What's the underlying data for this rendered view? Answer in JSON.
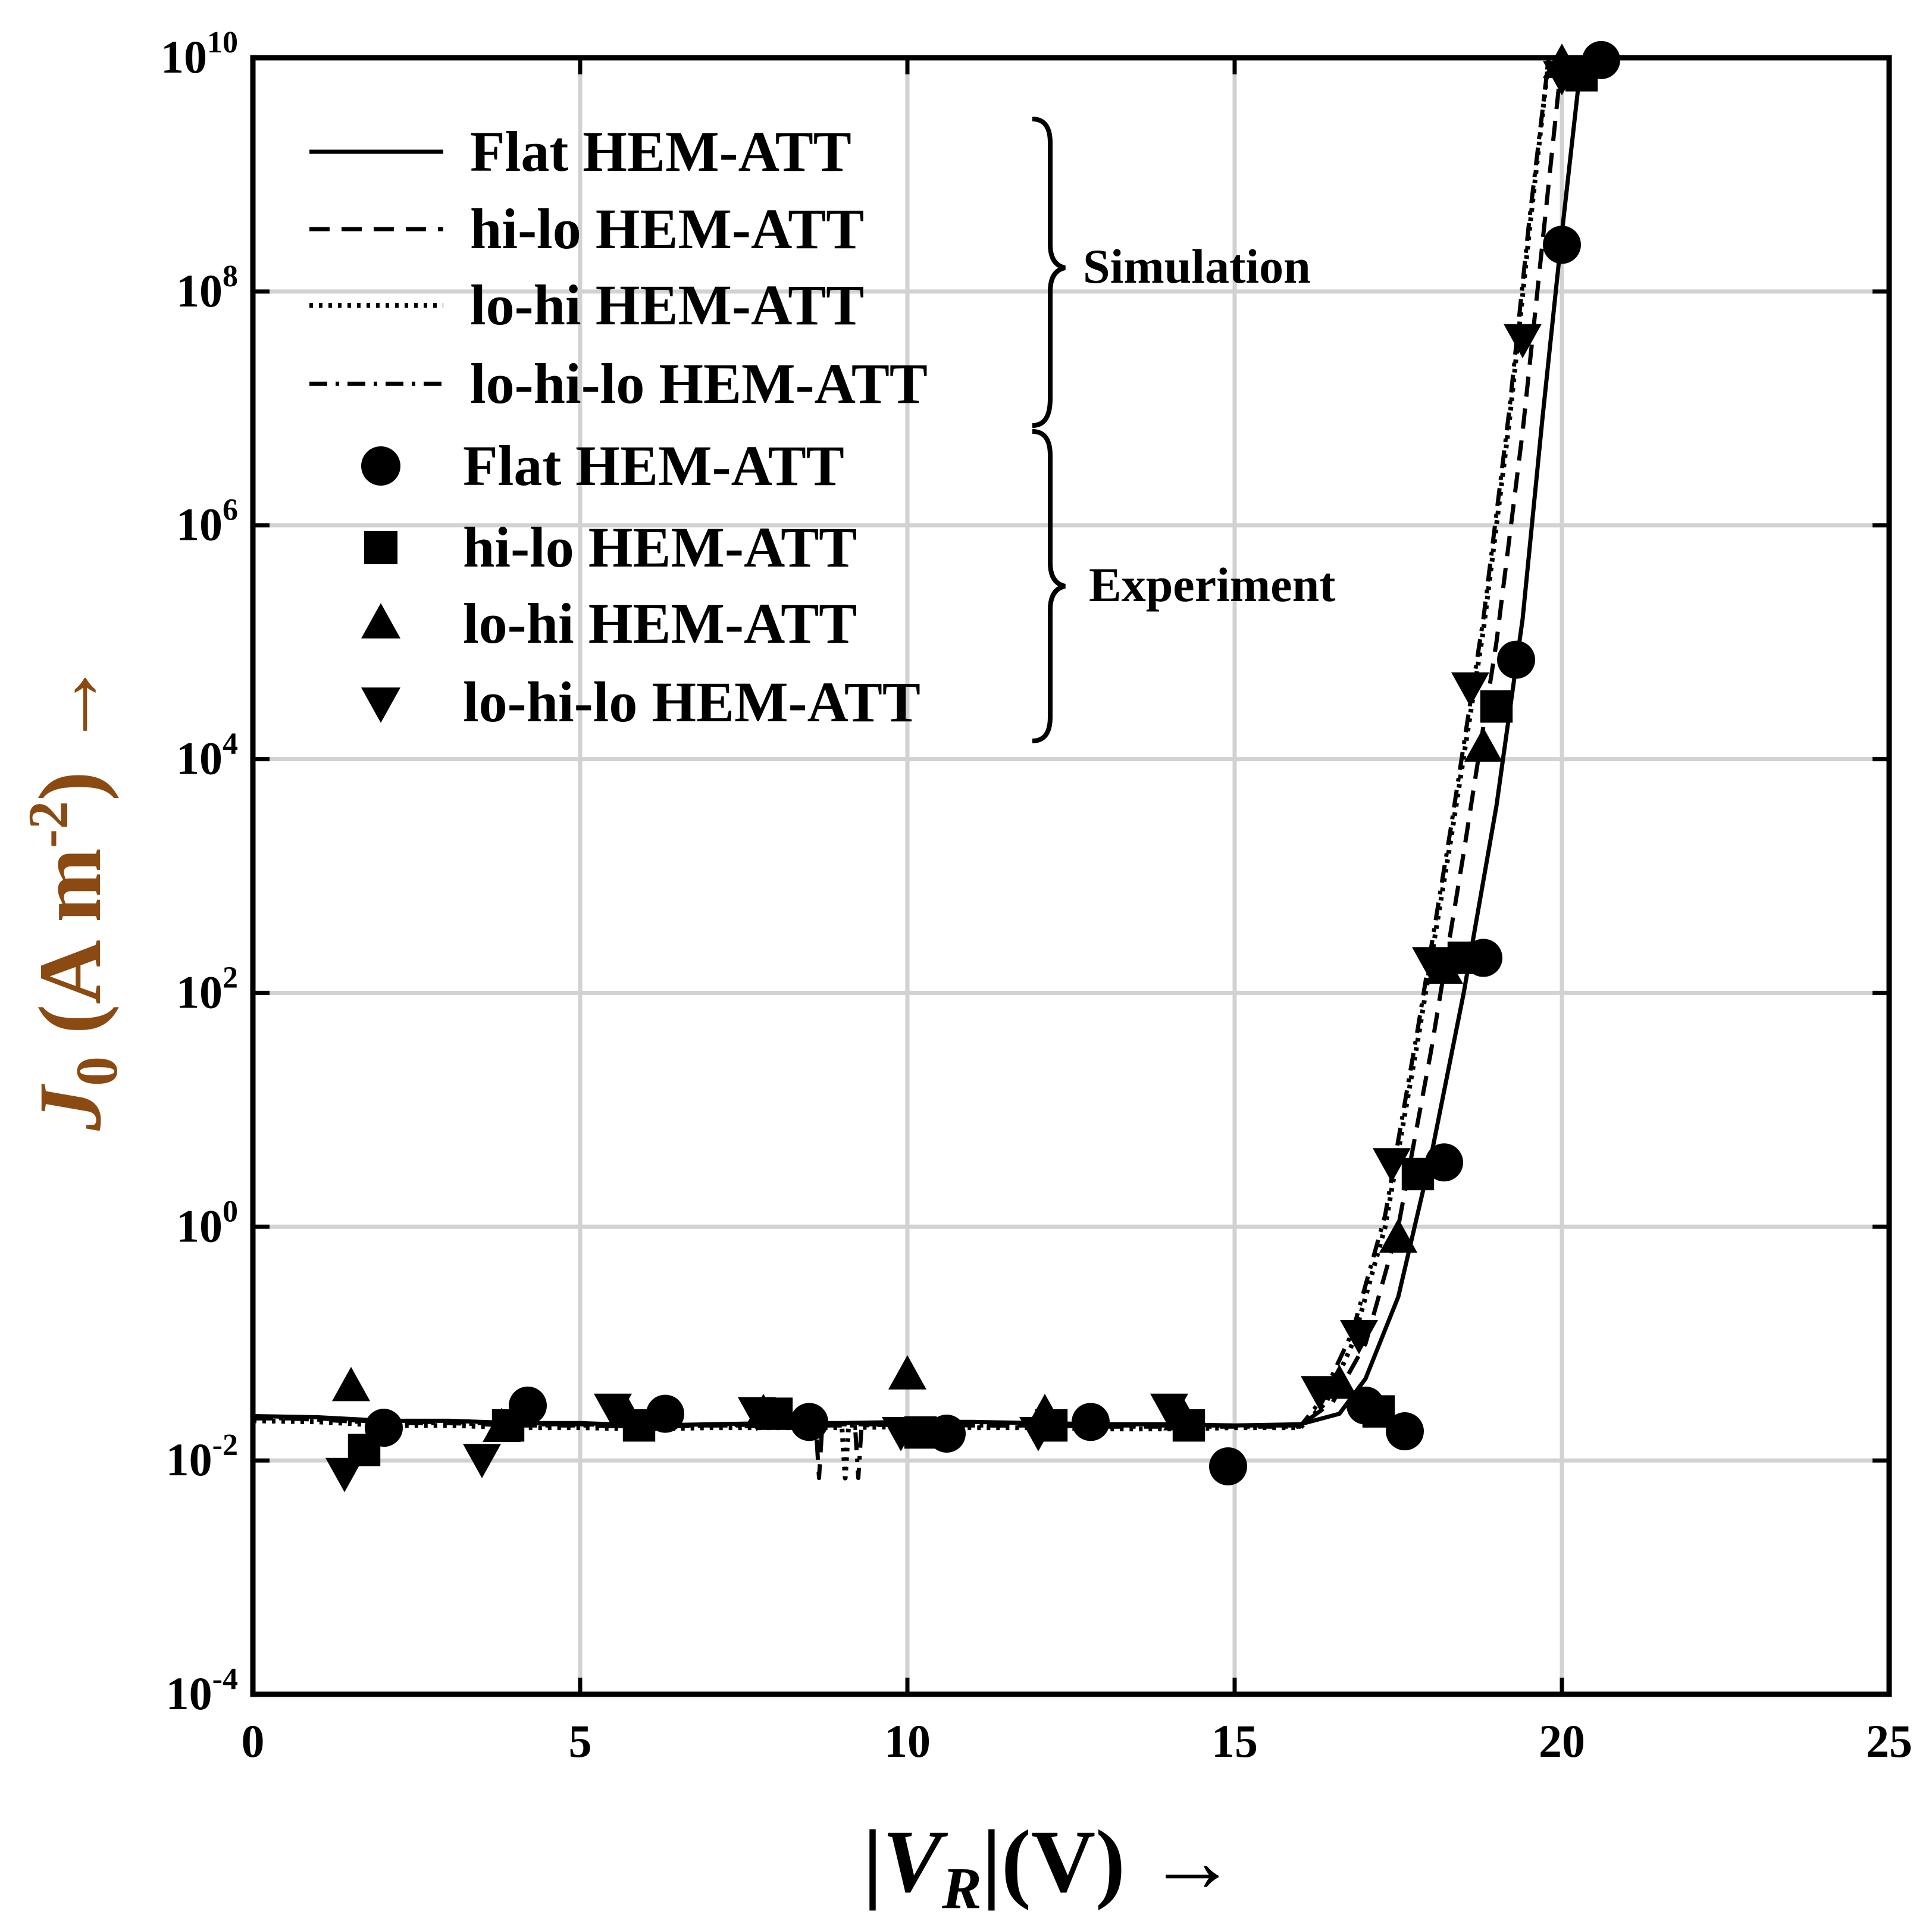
{
  "chart_data": {
    "type": "line",
    "title": "",
    "xlabel": {
      "prefix": "|",
      "var": "V",
      "sub": "R",
      "suffix": "|(V) →"
    },
    "ylabel": {
      "var": "J",
      "sub": "0",
      "mid": " (A m",
      "sup": "-2",
      "suffix": ") →"
    },
    "x_range": [
      0,
      25
    ],
    "y_range_log10": [
      -4,
      10
    ],
    "y_scale": "log",
    "grid": true,
    "x_ticks": [
      {
        "value": 0,
        "label": "0"
      },
      {
        "value": 5,
        "label": "5"
      },
      {
        "value": 10,
        "label": "10"
      },
      {
        "value": 15,
        "label": "15"
      },
      {
        "value": 20,
        "label": "20"
      },
      {
        "value": 25,
        "label": "25"
      }
    ],
    "y_ticks": [
      {
        "exp": 10,
        "base": "10",
        "sup": "10"
      },
      {
        "exp": 8,
        "base": "10",
        "sup": "8"
      },
      {
        "exp": 6,
        "base": "10",
        "sup": "6"
      },
      {
        "exp": 4,
        "base": "10",
        "sup": "4"
      },
      {
        "exp": 2,
        "base": "10",
        "sup": "2"
      },
      {
        "exp": 0,
        "base": "10",
        "sup": "0"
      },
      {
        "exp": -2,
        "base": "10",
        "sup": "-2"
      },
      {
        "exp": -4,
        "base": "10",
        "sup": "-4"
      }
    ],
    "legend_position": "top-left",
    "legend_groups": [
      {
        "label": "Simulation",
        "entries": [
          "Flat HEM-ATT",
          "hi-lo HEM-ATT",
          "lo-hi HEM-ATT",
          "lo-hi-lo HEM-ATT"
        ]
      },
      {
        "label": "Experiment",
        "entries": [
          "Flat HEM-ATT",
          "hi-lo HEM-ATT",
          "lo-hi HEM-ATT",
          "lo-hi-lo HEM-ATT"
        ]
      }
    ],
    "series": [
      {
        "name": "Flat HEM-ATT",
        "group": "Simulation",
        "style": "solid",
        "points": [
          [
            0,
            -1.62
          ],
          [
            1,
            -1.63
          ],
          [
            2,
            -1.66
          ],
          [
            3,
            -1.66
          ],
          [
            4,
            -1.68
          ],
          [
            5,
            -1.68
          ],
          [
            6,
            -1.7
          ],
          [
            7,
            -1.69
          ],
          [
            8,
            -1.68
          ],
          [
            9,
            -1.68
          ],
          [
            10,
            -1.67
          ],
          [
            11,
            -1.67
          ],
          [
            12,
            -1.68
          ],
          [
            13,
            -1.69
          ],
          [
            14,
            -1.69
          ],
          [
            15,
            -1.7
          ],
          [
            16,
            -1.69
          ],
          [
            16.6,
            -1.6
          ],
          [
            17,
            -1.3
          ],
          [
            17.5,
            -0.6
          ],
          [
            18,
            0.6
          ],
          [
            18.5,
            2
          ],
          [
            19,
            3.6
          ],
          [
            19.4,
            5.2
          ],
          [
            19.7,
            6.9
          ],
          [
            20,
            8.5
          ],
          [
            20.3,
            10
          ]
        ]
      },
      {
        "name": "hi-lo HEM-ATT",
        "group": "Simulation",
        "style": "dashed",
        "points": [
          [
            0,
            -1.64
          ],
          [
            1,
            -1.64
          ],
          [
            2,
            -1.67
          ],
          [
            3,
            -1.67
          ],
          [
            4,
            -1.69
          ],
          [
            5,
            -1.69
          ],
          [
            6,
            -1.7
          ],
          [
            7,
            -1.7
          ],
          [
            8,
            -1.69
          ],
          [
            8.6,
            -1.69
          ],
          [
            8.65,
            -2.15
          ],
          [
            8.7,
            -1.69
          ],
          [
            10,
            -1.69
          ],
          [
            11,
            -1.7
          ],
          [
            12,
            -1.7
          ],
          [
            13,
            -1.7
          ],
          [
            14,
            -1.7
          ],
          [
            15,
            -1.7
          ],
          [
            16,
            -1.7
          ],
          [
            16.5,
            -1.5
          ],
          [
            17,
            -1
          ],
          [
            17.5,
            0
          ],
          [
            18,
            1.5
          ],
          [
            18.5,
            3.2
          ],
          [
            19,
            5
          ],
          [
            19.4,
            6.8
          ],
          [
            19.7,
            8.4
          ],
          [
            20,
            10
          ]
        ]
      },
      {
        "name": "lo-hi HEM-ATT",
        "group": "Simulation",
        "style": "dotted",
        "points": [
          [
            0,
            -1.66
          ],
          [
            1,
            -1.67
          ],
          [
            2,
            -1.7
          ],
          [
            3,
            -1.7
          ],
          [
            4,
            -1.72
          ],
          [
            5,
            -1.72
          ],
          [
            6,
            -1.73
          ],
          [
            7,
            -1.72
          ],
          [
            8,
            -1.72
          ],
          [
            9,
            -1.72
          ],
          [
            9.05,
            -2.15
          ],
          [
            9.1,
            -1.72
          ],
          [
            10,
            -1.71
          ],
          [
            11,
            -1.72
          ],
          [
            12,
            -1.72
          ],
          [
            13,
            -1.73
          ],
          [
            14,
            -1.73
          ],
          [
            15,
            -1.72
          ],
          [
            16,
            -1.72
          ],
          [
            16.4,
            -1.5
          ],
          [
            16.8,
            -1
          ],
          [
            17.3,
            0
          ],
          [
            17.8,
            1.6
          ],
          [
            18.3,
            3.3
          ],
          [
            18.8,
            5.1
          ],
          [
            19.2,
            6.9
          ],
          [
            19.5,
            8.5
          ],
          [
            19.8,
            10
          ]
        ]
      },
      {
        "name": "lo-hi-lo HEM-ATT",
        "group": "Simulation",
        "style": "dashdot",
        "points": [
          [
            0,
            -1.63
          ],
          [
            1,
            -1.65
          ],
          [
            2,
            -1.68
          ],
          [
            3,
            -1.68
          ],
          [
            4,
            -1.7
          ],
          [
            5,
            -1.7
          ],
          [
            6,
            -1.71
          ],
          [
            7,
            -1.7
          ],
          [
            8,
            -1.7
          ],
          [
            9,
            -1.7
          ],
          [
            9.2,
            -1.7
          ],
          [
            9.25,
            -2.15
          ],
          [
            9.3,
            -1.7
          ],
          [
            10,
            -1.69
          ],
          [
            11,
            -1.7
          ],
          [
            12,
            -1.7
          ],
          [
            13,
            -1.71
          ],
          [
            14,
            -1.71
          ],
          [
            15,
            -1.71
          ],
          [
            16,
            -1.71
          ],
          [
            16.3,
            -1.5
          ],
          [
            16.8,
            -0.9
          ],
          [
            17.3,
            0.1
          ],
          [
            17.8,
            1.7
          ],
          [
            18.3,
            3.4
          ],
          [
            18.8,
            5.2
          ],
          [
            19.2,
            7
          ],
          [
            19.5,
            8.6
          ],
          [
            19.8,
            10
          ]
        ]
      },
      {
        "name": "Flat HEM-ATT",
        "group": "Experiment",
        "marker": "circle",
        "points": [
          [
            2,
            -1.72
          ],
          [
            4.2,
            -1.53
          ],
          [
            6.3,
            -1.6
          ],
          [
            8.5,
            -1.67
          ],
          [
            10.6,
            -1.77
          ],
          [
            12.8,
            -1.67
          ],
          [
            14.9,
            -2.05
          ],
          [
            17,
            -1.53
          ],
          [
            17.6,
            -1.75
          ],
          [
            18.2,
            0.55
          ],
          [
            18.8,
            2.3
          ],
          [
            19.3,
            4.85
          ],
          [
            20,
            8.4
          ],
          [
            20.6,
            9.98
          ]
        ]
      },
      {
        "name": "hi-lo HEM-ATT",
        "group": "Experiment",
        "marker": "square",
        "points": [
          [
            1.7,
            -1.91
          ],
          [
            3.9,
            -1.7
          ],
          [
            5.9,
            -1.7
          ],
          [
            8,
            -1.6
          ],
          [
            10.2,
            -1.76
          ],
          [
            12.2,
            -1.7
          ],
          [
            14.3,
            -1.7
          ],
          [
            17.2,
            -1.58
          ],
          [
            17.8,
            0.45
          ],
          [
            18.5,
            2.3
          ],
          [
            19,
            4.45
          ],
          [
            20.3,
            9.85
          ]
        ]
      },
      {
        "name": "lo-hi HEM-ATT",
        "group": "Experiment",
        "marker": "triangle-up",
        "points": [
          [
            1.5,
            -1.37
          ],
          [
            3.8,
            -1.72
          ],
          [
            5.7,
            -1.6
          ],
          [
            7.8,
            -1.6
          ],
          [
            10,
            -1.27
          ],
          [
            12.1,
            -1.6
          ],
          [
            14.2,
            -1.62
          ],
          [
            16.6,
            -1.35
          ],
          [
            17.5,
            -0.1
          ],
          [
            18.2,
            2.2
          ],
          [
            18.8,
            4.1
          ],
          [
            20,
            9.95
          ]
        ]
      },
      {
        "name": "lo-hi-lo HEM-ATT",
        "group": "Experiment",
        "marker": "triangle-down",
        "points": [
          [
            1.4,
            -2.1
          ],
          [
            3.5,
            -1.98
          ],
          [
            5.5,
            -1.55
          ],
          [
            7.7,
            -1.58
          ],
          [
            9.9,
            -1.75
          ],
          [
            12,
            -1.75
          ],
          [
            14,
            -1.55
          ],
          [
            16.3,
            -1.4
          ],
          [
            16.9,
            -0.92
          ],
          [
            17.4,
            0.55
          ],
          [
            18,
            2.27
          ],
          [
            18.6,
            4.62
          ],
          [
            19.4,
            7.6
          ],
          [
            20,
            9.85
          ]
        ]
      }
    ]
  }
}
